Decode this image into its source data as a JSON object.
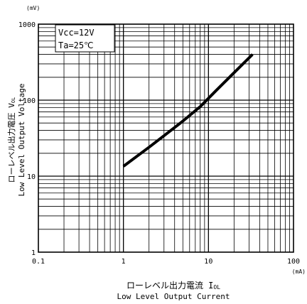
{
  "chart_data": {
    "type": "line",
    "x_scale": "log",
    "y_scale": "log",
    "xlim": [
      0.1,
      100
    ],
    "ylim": [
      1,
      1000
    ],
    "grid": true,
    "x_ticks": [
      {
        "value": 0.1,
        "label": "0.1"
      },
      {
        "value": 1,
        "label": "1"
      },
      {
        "value": 10,
        "label": "10"
      },
      {
        "value": 100,
        "label": "100"
      }
    ],
    "y_ticks": [
      {
        "value": 1,
        "label": "1"
      },
      {
        "value": 10,
        "label": "10"
      },
      {
        "value": 100,
        "label": "100"
      },
      {
        "value": 1000,
        "label": "1000"
      }
    ],
    "x_unit": "(mA)",
    "y_unit": "(mV)",
    "xlabel_jp": "ローレベル出力電流 I",
    "xlabel_sub": "OL",
    "xlabel_en": "Low Level Output Current",
    "ylabel_jp": "ローレベル出力電圧 V",
    "ylabel_sub": "OL",
    "ylabel_en": "Low Level Output Voltage",
    "conditions": [
      "Vcc=12V",
      "Ta=25℃"
    ],
    "series": [
      {
        "x": [
          1,
          2,
          3,
          5,
          8,
          12,
          20,
          33
        ],
        "y": [
          13.5,
          24,
          34,
          53,
          82,
          130,
          230,
          400
        ]
      }
    ],
    "line_color": "#000000"
  }
}
